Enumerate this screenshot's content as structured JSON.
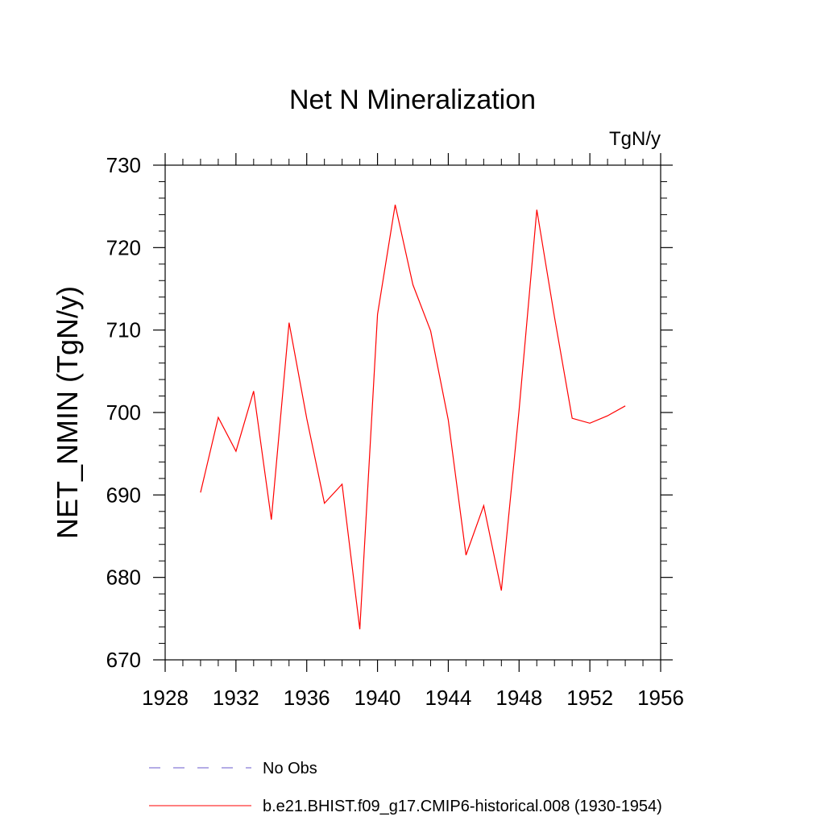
{
  "chart_data": {
    "type": "line",
    "title": "Net N Mineralization",
    "units": "TgN/y",
    "ylabel": "NET_NMIN  (TgN/y)",
    "xlabel": "",
    "xlim": [
      1928,
      1956
    ],
    "ylim": [
      670,
      730
    ],
    "xticks": [
      1928,
      1932,
      1936,
      1940,
      1944,
      1948,
      1952,
      1956
    ],
    "yticks": [
      670,
      680,
      690,
      700,
      710,
      720,
      730
    ],
    "x_minor_step": 1,
    "y_minor_step": 2,
    "grid": false,
    "legend_position": "bottom",
    "series": [
      {
        "name": "No Obs",
        "color": "#6a5acd",
        "dash": "dashed",
        "x": [],
        "y": []
      },
      {
        "name": "b.e21.BHIST.f09_g17.CMIP6-historical.008 (1930-1954)",
        "color": "#ff0000",
        "dash": "solid",
        "x": [
          1930,
          1931,
          1932,
          1933,
          1934,
          1935,
          1936,
          1937,
          1938,
          1939,
          1940,
          1941,
          1942,
          1943,
          1944,
          1945,
          1946,
          1947,
          1948,
          1949,
          1950,
          1951,
          1952,
          1953,
          1954
        ],
        "y": [
          690.3,
          699.4,
          695.3,
          702.6,
          687.0,
          710.9,
          699.3,
          689.0,
          691.3,
          673.7,
          711.9,
          725.2,
          715.5,
          709.9,
          699.1,
          682.7,
          688.7,
          678.4,
          700.3,
          724.6,
          711.6,
          699.3,
          698.7,
          699.6,
          700.8
        ]
      }
    ]
  }
}
